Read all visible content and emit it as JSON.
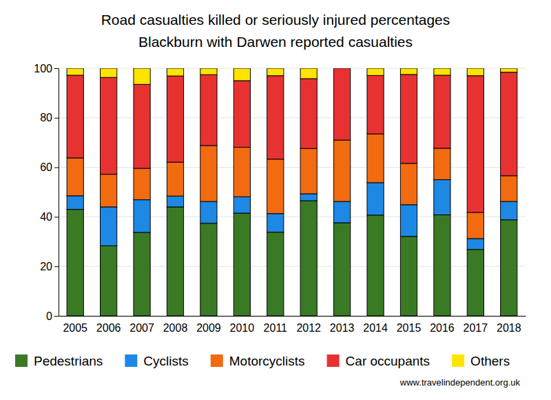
{
  "chart_data": {
    "type": "bar",
    "title": "Road casualties killed or seriously injured percentages",
    "subtitle": "Blackburn with Darwen reported casualties",
    "annotations": [
      "www.travelindependent.org.uk"
    ],
    "stacked": true,
    "grid": true,
    "legend": "bottom",
    "categories": [
      "2005",
      "2006",
      "2007",
      "2008",
      "2009",
      "2010",
      "2011",
      "2012",
      "2013",
      "2014",
      "2015",
      "2016",
      "2017",
      "2018"
    ],
    "series": [
      {
        "name": "Pedestrians",
        "color": "#3b7a24",
        "values": [
          43,
          28.3,
          33.7,
          44,
          37.4,
          41.5,
          33.8,
          46.5,
          37.6,
          40.7,
          32.1,
          40.8,
          26.8,
          38.8
        ]
      },
      {
        "name": "Cyclists",
        "color": "#1e88e5",
        "values": [
          5.5,
          15.7,
          13.2,
          4.4,
          8.8,
          6.6,
          7.5,
          2.8,
          8.6,
          13.1,
          12.8,
          14.2,
          4.4,
          7.4
        ]
      },
      {
        "name": "Motorcyclists",
        "color": "#f26b10",
        "values": [
          15.3,
          13.2,
          12.7,
          13.7,
          22.6,
          20,
          22,
          18.3,
          24.8,
          19.7,
          16.7,
          12.7,
          10.6,
          10.4
        ]
      },
      {
        "name": "Car occupants",
        "color": "#e83232",
        "values": [
          33.4,
          39.1,
          33.9,
          34.8,
          28.6,
          26.9,
          33.7,
          28.2,
          29,
          23.6,
          35.9,
          29.5,
          55.2,
          41.8
        ]
      },
      {
        "name": "Others",
        "color": "#ffe400",
        "values": [
          2.8,
          3.7,
          6.5,
          3.1,
          2.6,
          5,
          3,
          4.2,
          0,
          2.9,
          2.5,
          2.8,
          3,
          1.6
        ]
      }
    ],
    "ylim": [
      0,
      100
    ],
    "yticks": [
      0,
      20,
      40,
      60,
      80,
      100
    ]
  }
}
